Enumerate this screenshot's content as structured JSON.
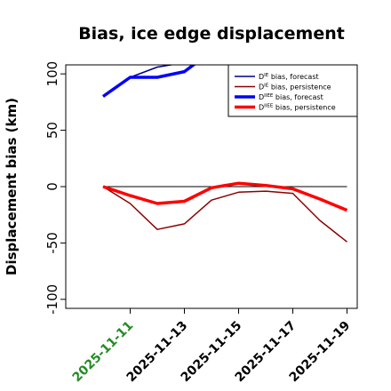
{
  "chart_data": {
    "type": "line",
    "title": "Bias, ice edge displacement",
    "xlabel": "",
    "ylabel": "Displacement bias (km)",
    "ylim": [
      -108,
      108
    ],
    "yticks": [
      -100,
      -50,
      0,
      50,
      100
    ],
    "x": [
      "2025-11-10",
      "2025-11-11",
      "2025-11-12",
      "2025-11-13",
      "2025-11-14",
      "2025-11-15",
      "2025-11-16",
      "2025-11-17",
      "2025-11-18",
      "2025-11-19"
    ],
    "xticks": [
      "2025-11-11",
      "2025-11-13",
      "2025-11-15",
      "2025-11-17",
      "2025-11-19"
    ],
    "highlight_tick": "2025-11-11",
    "highlight_color": "#228B22",
    "zero_line": true,
    "grid": false,
    "legend_position": "top-right",
    "series": [
      {
        "name": "Dᴵᴱ bias, forecast",
        "label_base": "D",
        "label_sup": "IE",
        "label_rest": " bias, forecast",
        "color": "#00008B",
        "width": 1.5,
        "values": [
          80,
          97,
          106,
          110,
          113,
          null,
          null,
          null,
          null,
          null
        ]
      },
      {
        "name": "Dᴵᴱ bias, persistence",
        "label_base": "D",
        "label_sup": "IE",
        "label_rest": " bias, persistence",
        "color": "#8B0000",
        "width": 1.5,
        "values": [
          0,
          -15,
          -38,
          -33,
          -12,
          -5,
          -4,
          -6,
          -30,
          -49
        ]
      },
      {
        "name": "Dᴵᴵᴱᴱ bias, forecast",
        "label_base": "D",
        "label_sup": "IIEE",
        "label_rest": " bias, forecast",
        "color": "#0000FF",
        "width": 3.5,
        "values": [
          80,
          97,
          97,
          102,
          120,
          null,
          null,
          null,
          null,
          null
        ]
      },
      {
        "name": "Dᴵᴵᴱᴱ bias, persistence",
        "label_base": "D",
        "label_sup": "IIEE",
        "label_rest": " bias, persistence",
        "color": "#FF0000",
        "width": 3.5,
        "values": [
          0,
          -8,
          -15,
          -13,
          -1,
          3,
          1,
          -2,
          -11,
          -21
        ]
      }
    ]
  }
}
